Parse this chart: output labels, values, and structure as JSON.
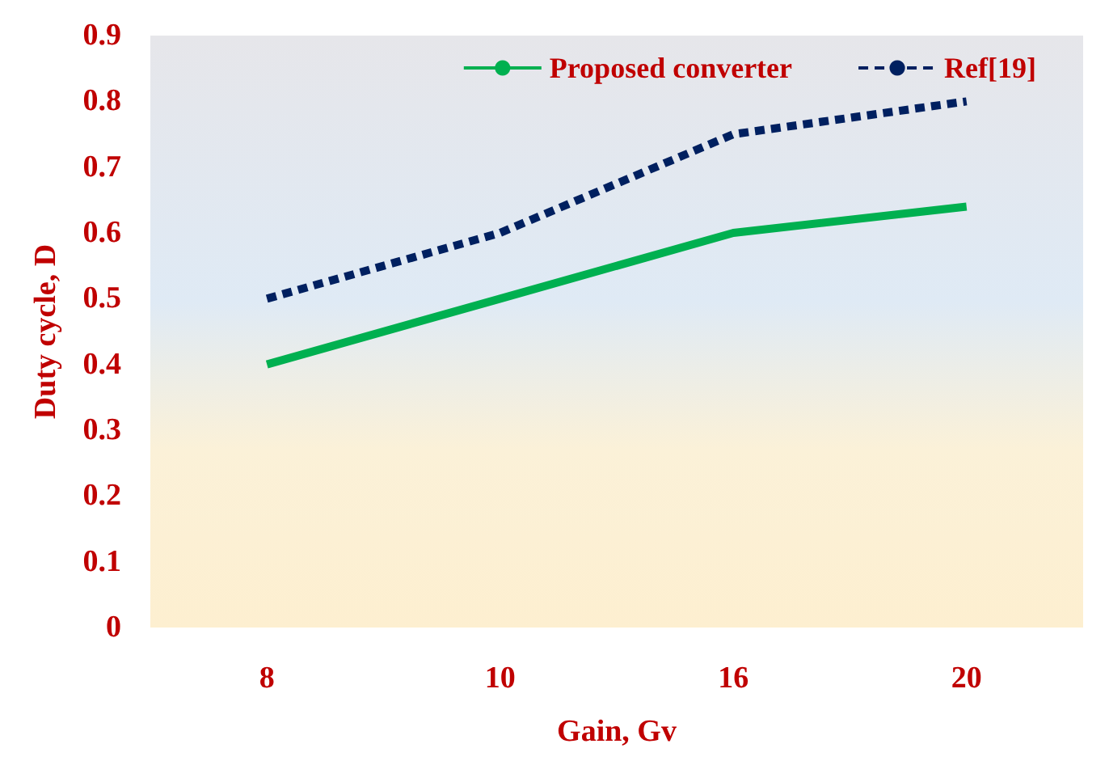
{
  "chart_data": {
    "type": "line",
    "xlabel": "Gain, Gv",
    "ylabel": "Duty cycle, D",
    "categories": [
      "8",
      "10",
      "16",
      "20"
    ],
    "series": [
      {
        "name": "Proposed converter",
        "color": "#00b050",
        "line_style": "solid",
        "values": [
          0.4,
          0.5,
          0.6,
          0.64
        ]
      },
      {
        "name": "Ref[19]",
        "color": "#002060",
        "line_style": "dashed",
        "values": [
          0.5,
          0.6,
          0.75,
          0.8
        ]
      }
    ],
    "ylim": [
      0,
      0.9
    ],
    "yticks": [
      0,
      0.1,
      0.2,
      0.3,
      0.4,
      0.5,
      0.6,
      0.7,
      0.8,
      0.9
    ],
    "grid": false,
    "legend": "top right",
    "marker": "none"
  }
}
